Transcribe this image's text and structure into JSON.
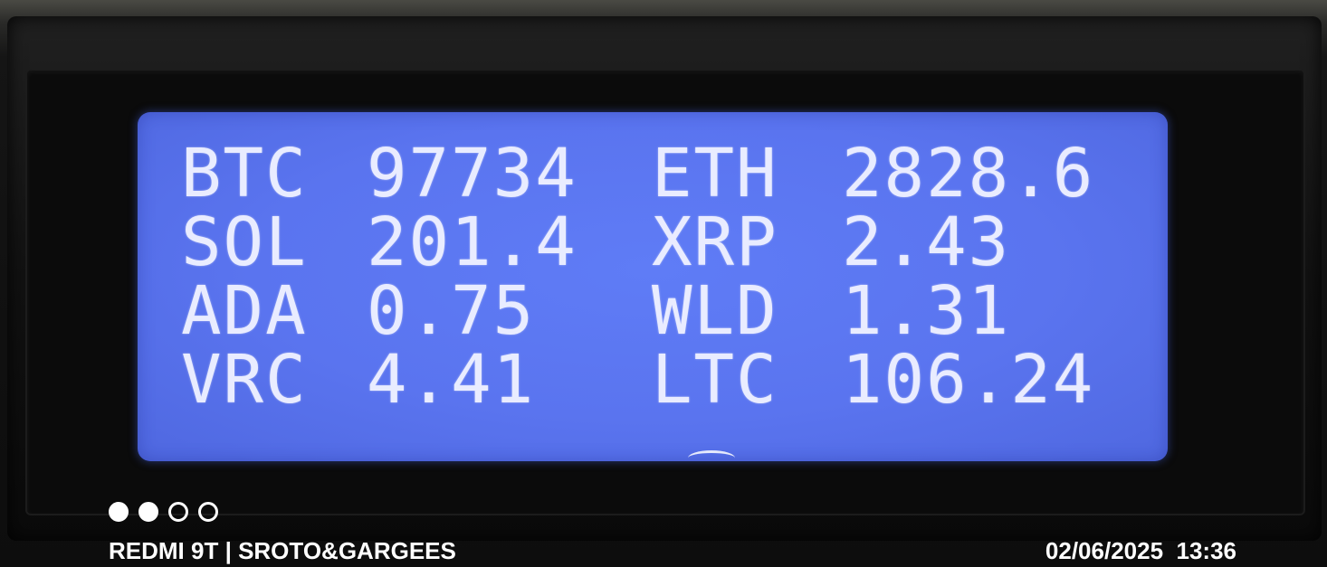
{
  "lcd": {
    "rows": [
      [
        "BTC",
        "97734",
        "ETH",
        "2828.6"
      ],
      [
        "SOL",
        "201.4",
        "XRP",
        "2.43"
      ],
      [
        "ADA",
        "0.75",
        "WLD",
        "1.31"
      ],
      [
        "VRC",
        "4.41",
        "LTC",
        "106.24"
      ]
    ],
    "backlight_color": "#5a74ef",
    "text_color": "#e9ecff"
  },
  "watermark": {
    "left": "REDMI 9T | SROTO&GARGEES",
    "date": "02/06/2025",
    "time": "13:36",
    "dots": [
      true,
      true,
      false,
      false
    ]
  }
}
